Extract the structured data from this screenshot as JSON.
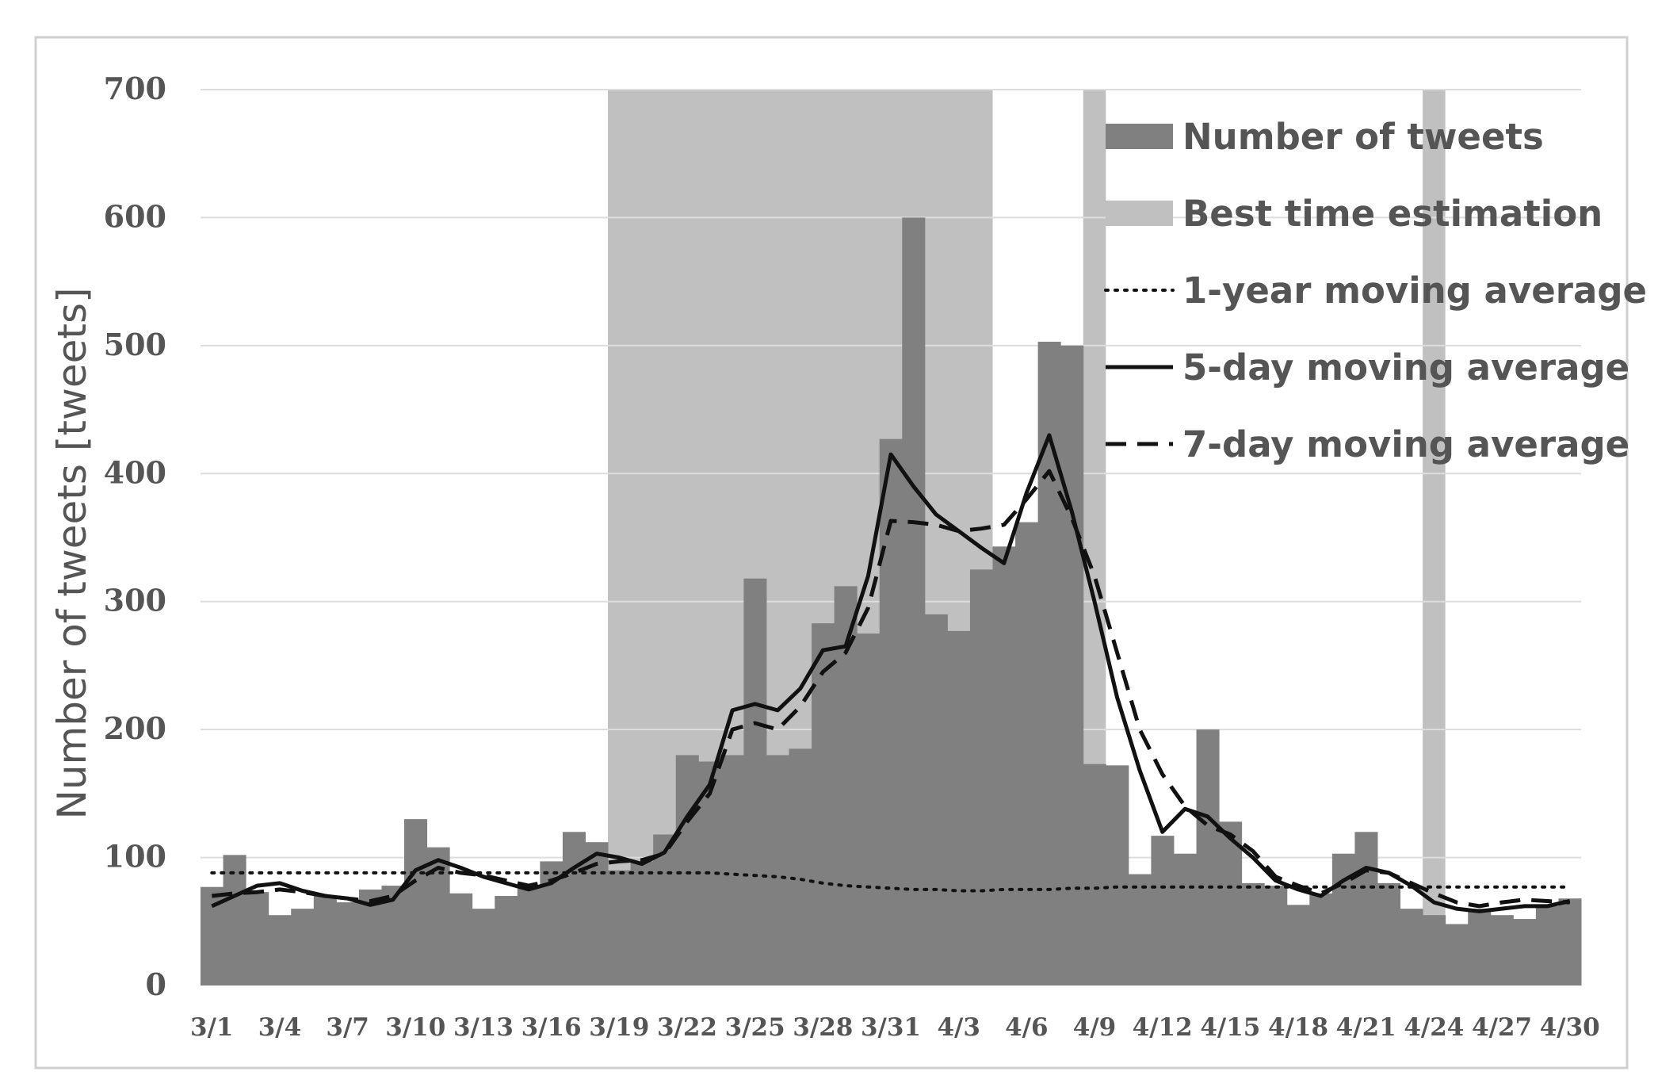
{
  "chart_data": {
    "type": "bar",
    "title": "",
    "xlabel": "",
    "ylabel": "Number of tweets [tweets]",
    "ylim": [
      0,
      700
    ],
    "yticks": [
      0,
      100,
      200,
      300,
      400,
      500,
      600,
      700
    ],
    "grid": true,
    "legend_position": "top-right",
    "categories": [
      "3/1",
      "3/2",
      "3/3",
      "3/4",
      "3/5",
      "3/6",
      "3/7",
      "3/8",
      "3/9",
      "3/10",
      "3/11",
      "3/12",
      "3/13",
      "3/14",
      "3/15",
      "3/16",
      "3/17",
      "3/18",
      "3/19",
      "3/20",
      "3/21",
      "3/22",
      "3/23",
      "3/24",
      "3/25",
      "3/26",
      "3/27",
      "3/28",
      "3/29",
      "3/30",
      "3/31",
      "4/1",
      "4/2",
      "4/3",
      "4/4",
      "4/5",
      "4/6",
      "4/7",
      "4/8",
      "4/9",
      "4/10",
      "4/11",
      "4/12",
      "4/13",
      "4/14",
      "4/15",
      "4/16",
      "4/17",
      "4/18",
      "4/19",
      "4/20",
      "4/21",
      "4/22",
      "4/23",
      "4/24",
      "4/25",
      "4/26",
      "4/27",
      "4/28",
      "4/29",
      "4/30"
    ],
    "tick_labels": [
      "3/1",
      "3/4",
      "3/7",
      "3/10",
      "3/13",
      "3/16",
      "3/19",
      "3/22",
      "3/25",
      "3/28",
      "3/31",
      "4/3",
      "4/6",
      "4/9",
      "4/12",
      "4/15",
      "4/18",
      "4/21",
      "4/24",
      "4/27",
      "4/30"
    ],
    "best_time_ranges": [
      [
        "3/19",
        "4/4"
      ],
      [
        "4/9",
        "4/9"
      ],
      [
        "4/24",
        "4/24"
      ]
    ],
    "series": [
      {
        "name": "Number of tweets",
        "kind": "bar",
        "color": "#808080",
        "values": [
          77,
          102,
          73,
          55,
          60,
          70,
          65,
          75,
          78,
          130,
          108,
          72,
          60,
          70,
          77,
          97,
          120,
          112,
          90,
          97,
          118,
          180,
          175,
          180,
          318,
          180,
          185,
          283,
          312,
          275,
          427,
          600,
          290,
          277,
          325,
          343,
          362,
          503,
          500,
          173,
          172,
          87,
          117,
          103,
          200,
          128,
          80,
          78,
          63,
          72,
          103,
          120,
          80,
          60,
          55,
          48,
          60,
          55,
          52,
          62,
          68
        ]
      },
      {
        "name": "1-year moving average",
        "kind": "line",
        "style": "dotted",
        "color": "#111111",
        "values": [
          88,
          88,
          88,
          88,
          88,
          88,
          88,
          88,
          88,
          88,
          88,
          88,
          88,
          88,
          88,
          88,
          88,
          88,
          88,
          88,
          88,
          88,
          88,
          87,
          86,
          85,
          83,
          80,
          78,
          77,
          76,
          75,
          75,
          74,
          74,
          75,
          75,
          75,
          76,
          76,
          77,
          77,
          77,
          77,
          77,
          77,
          77,
          77,
          77,
          77,
          77,
          77,
          77,
          77,
          77,
          77,
          77,
          77,
          77,
          77,
          77
        ]
      },
      {
        "name": "5-day moving average",
        "kind": "line",
        "style": "solid",
        "color": "#111111",
        "values": [
          62,
          70,
          78,
          80,
          74,
          70,
          68,
          63,
          67,
          90,
          98,
          92,
          85,
          80,
          75,
          80,
          92,
          103,
          100,
          95,
          104,
          132,
          157,
          215,
          220,
          215,
          232,
          262,
          265,
          320,
          415,
          390,
          368,
          355,
          342,
          330,
          385,
          430,
          370,
          300,
          225,
          168,
          120,
          138,
          132,
          115,
          100,
          82,
          75,
          70,
          82,
          92,
          88,
          78,
          65,
          60,
          58,
          60,
          62,
          62,
          66
        ]
      },
      {
        "name": "7-day moving average",
        "kind": "line",
        "style": "dashed",
        "color": "#111111",
        "values": [
          70,
          72,
          73,
          75,
          73,
          70,
          68,
          66,
          70,
          82,
          92,
          88,
          86,
          82,
          78,
          82,
          88,
          95,
          97,
          98,
          103,
          128,
          150,
          200,
          205,
          200,
          218,
          245,
          260,
          295,
          363,
          362,
          360,
          355,
          357,
          360,
          380,
          402,
          365,
          320,
          260,
          200,
          165,
          140,
          125,
          118,
          105,
          85,
          78,
          72,
          80,
          90,
          88,
          80,
          72,
          65,
          62,
          65,
          67,
          66,
          65
        ]
      }
    ]
  },
  "legend": {
    "items": [
      {
        "label": "Number of tweets",
        "swatch": "bar",
        "color": "#808080"
      },
      {
        "label": "Best time estimation",
        "swatch": "band",
        "color": "#c0c0c0"
      },
      {
        "label": "1-year moving average",
        "swatch": "dotted",
        "color": "#111111"
      },
      {
        "label": "5-day moving average",
        "swatch": "solid",
        "color": "#111111"
      },
      {
        "label": "7-day moving average",
        "swatch": "dashed",
        "color": "#111111"
      }
    ]
  },
  "colors": {
    "bars": "#808080",
    "best_time_band": "#c0c0c0",
    "lines": "#111111",
    "grid": "#dddddd",
    "axis_text": "#555555",
    "frame": "#d0d0d0"
  }
}
